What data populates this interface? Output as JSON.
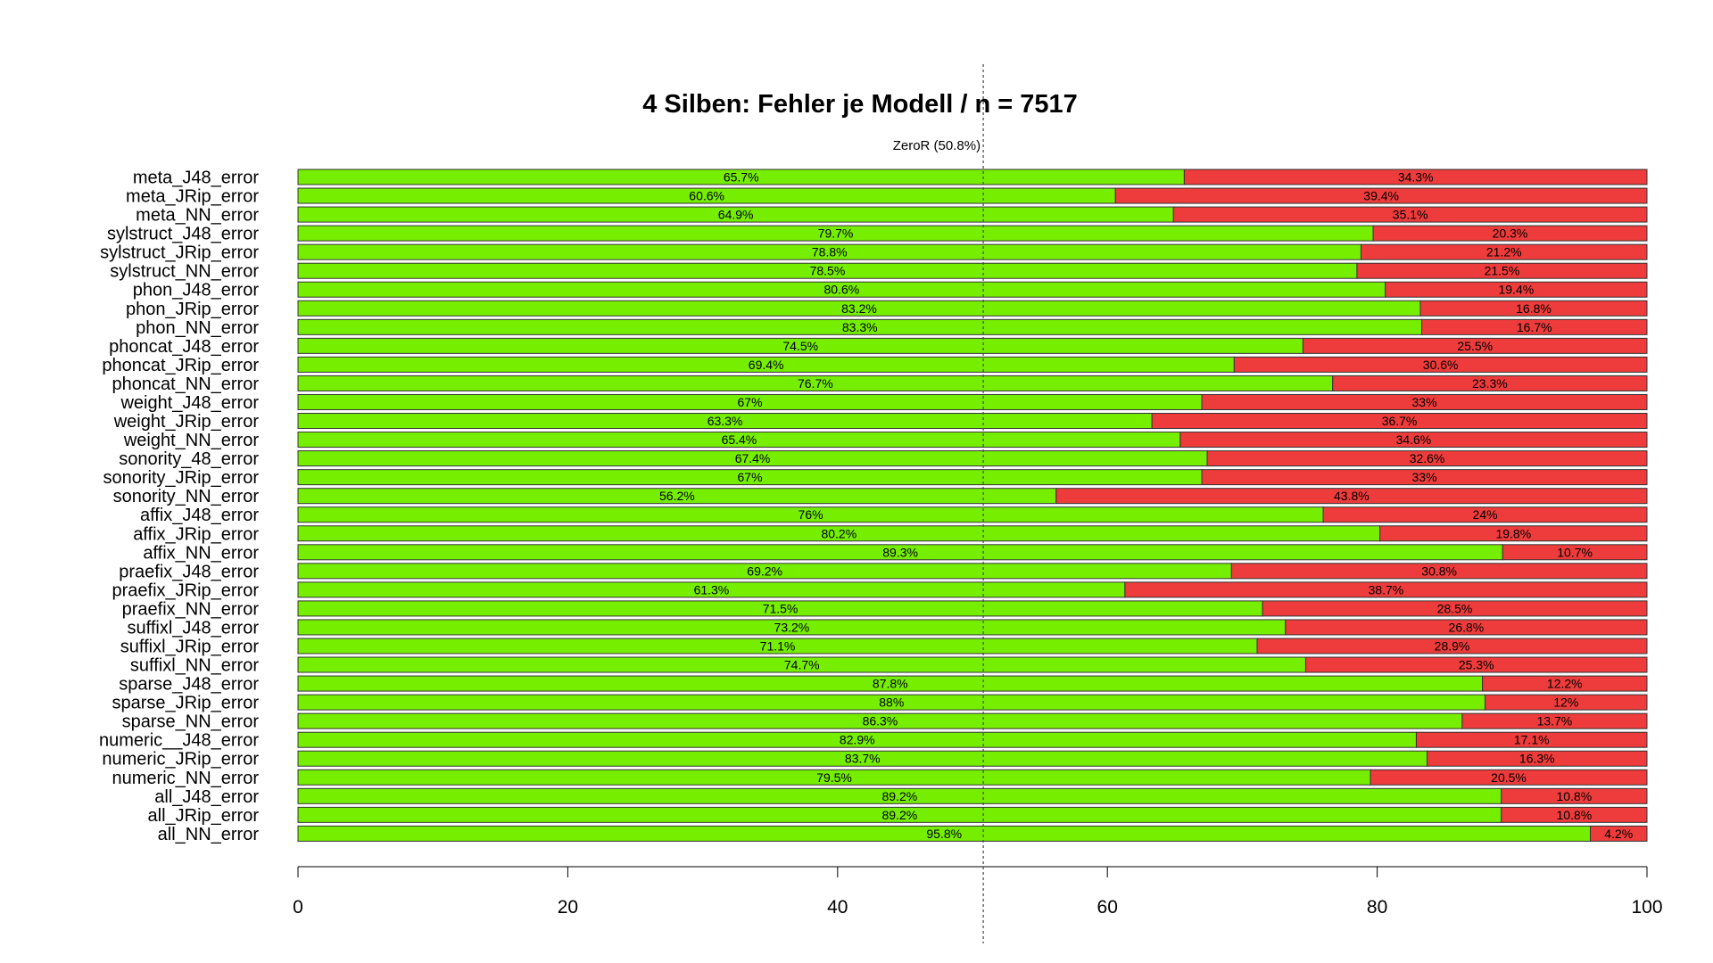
{
  "chart_data": {
    "type": "bar",
    "orientation": "horizontal",
    "stacked": true,
    "title": "4 Silben: Fehler je Modell / n = 7517",
    "xlabel": "",
    "ylabel": "",
    "xlim": [
      0,
      100
    ],
    "x_ticks": [
      0,
      20,
      40,
      60,
      80,
      100
    ],
    "grid": false,
    "legend": "none",
    "reference_line": {
      "value": 50.8,
      "label": "ZeroR (50.8%)"
    },
    "categories": [
      "meta_J48_error",
      "meta_JRip_error",
      "meta_NN_error",
      "sylstruct_J48_error",
      "sylstruct_JRip_error",
      "sylstruct_NN_error",
      "phon_J48_error",
      "phon_JRip_error",
      "phon_NN_error",
      "phoncat_J48_error",
      "phoncat_JRip_error",
      "phoncat_NN_error",
      "weight_J48_error",
      "weight_JRip_error",
      "weight_NN_error",
      "sonority_48_error",
      "sonority_JRip_error",
      "sonority_NN_error",
      "affix_J48_error",
      "affix_JRip_error",
      "affix_NN_error",
      "praefix_J48_error",
      "praefix_JRip_error",
      "praefix_NN_error",
      "suffixl_J48_error",
      "suffixl_JRip_error",
      "suffixl_NN_error",
      "sparse_J48_error",
      "sparse_JRip_error",
      "sparse_NN_error",
      "numeric__J48_error",
      "numeric_JRip_error",
      "numeric_NN_error",
      "all_J48_error",
      "all_JRip_error",
      "all_NN_error"
    ],
    "series": [
      {
        "color": "#76ee00",
        "values": [
          65.7,
          60.6,
          64.9,
          79.7,
          78.8,
          78.5,
          80.6,
          83.2,
          83.3,
          74.5,
          69.4,
          76.7,
          67,
          63.3,
          65.4,
          67.4,
          67,
          56.2,
          76,
          80.2,
          89.3,
          69.2,
          61.3,
          71.5,
          73.2,
          71.1,
          74.7,
          87.8,
          88,
          86.3,
          82.9,
          83.7,
          79.5,
          89.2,
          89.2,
          95.8
        ],
        "labels": [
          "65.7%",
          "60.6%",
          "64.9%",
          "79.7%",
          "78.8%",
          "78.5%",
          "80.6%",
          "83.2%",
          "83.3%",
          "74.5%",
          "69.4%",
          "76.7%",
          "67%",
          "63.3%",
          "65.4%",
          "67.4%",
          "67%",
          "56.2%",
          "76%",
          "80.2%",
          "89.3%",
          "69.2%",
          "61.3%",
          "71.5%",
          "73.2%",
          "71.1%",
          "74.7%",
          "87.8%",
          "88%",
          "86.3%",
          "82.9%",
          "83.7%",
          "79.5%",
          "89.2%",
          "89.2%",
          "95.8%"
        ]
      },
      {
        "color": "#ee3b3b",
        "values": [
          34.3,
          39.4,
          35.1,
          20.3,
          21.2,
          21.5,
          19.4,
          16.8,
          16.7,
          25.5,
          30.6,
          23.3,
          33,
          36.7,
          34.6,
          32.6,
          33,
          43.8,
          24,
          19.8,
          10.7,
          30.8,
          38.7,
          28.5,
          26.8,
          28.9,
          25.3,
          12.2,
          12,
          13.7,
          17.1,
          16.3,
          20.5,
          10.8,
          10.8,
          4.2
        ],
        "labels": [
          "34.3%",
          "39.4%",
          "35.1%",
          "20.3%",
          "21.2%",
          "21.5%",
          "19.4%",
          "16.8%",
          "16.7%",
          "25.5%",
          "30.6%",
          "23.3%",
          "33%",
          "36.7%",
          "34.6%",
          "32.6%",
          "33%",
          "43.8%",
          "24%",
          "19.8%",
          "10.7%",
          "30.8%",
          "38.7%",
          "28.5%",
          "26.8%",
          "28.9%",
          "25.3%",
          "12.2%",
          "12%",
          "13.7%",
          "17.1%",
          "16.3%",
          "20.5%",
          "10.8%",
          "10.8%",
          "4.2%"
        ]
      }
    ]
  }
}
